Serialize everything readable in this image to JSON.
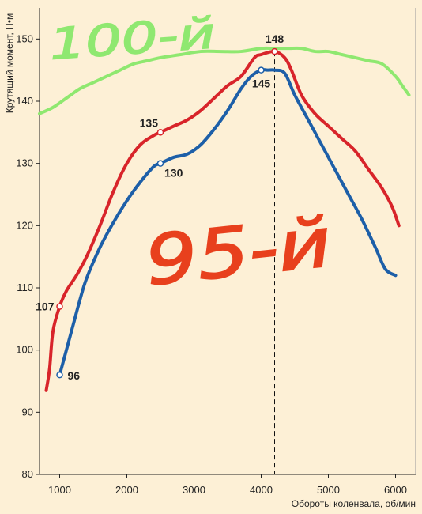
{
  "chart_data": {
    "type": "line",
    "xlabel": "Обороты коленвала, об/мин",
    "ylabel": "Крутящий момент, Н•м",
    "xlim": [
      700,
      6300
    ],
    "ylim": [
      80,
      155
    ],
    "xticks": [
      1000,
      2000,
      3000,
      4000,
      5000,
      6000
    ],
    "yticks": [
      80,
      90,
      100,
      110,
      120,
      130,
      140,
      150
    ],
    "grid": false,
    "colors": {
      "background": "#fdf0d6",
      "red": "#d8242a",
      "blue": "#1d5fa8",
      "green": "#8fe870",
      "handwriting": "#e8401d"
    },
    "series": [
      {
        "color": "#d8242a",
        "x": [
          800,
          850,
          900,
          1000,
          1100,
          1250,
          1400,
          1600,
          1800,
          2000,
          2200,
          2400,
          2500,
          2700,
          2900,
          3100,
          3300,
          3500,
          3700,
          3900,
          4000,
          4200,
          4350,
          4450,
          4600,
          4800,
          5000,
          5200,
          5400,
          5600,
          5800,
          5950,
          6050
        ],
        "values": [
          93.5,
          97,
          103,
          107,
          109.5,
          112,
          115,
          120,
          125.5,
          130,
          133,
          134.5,
          135,
          136,
          137,
          138.5,
          140.5,
          142.5,
          144,
          147,
          147.5,
          148,
          147,
          145,
          141,
          138,
          136,
          134,
          132,
          129,
          126,
          123,
          120
        ]
      },
      {
        "color": "#1d5fa8",
        "x": [
          1000,
          1100,
          1200,
          1300,
          1400,
          1600,
          1800,
          2000,
          2200,
          2400,
          2500,
          2700,
          2900,
          3100,
          3300,
          3500,
          3700,
          3850,
          4000,
          4100,
          4200,
          4350,
          4500,
          4700,
          4900,
          5100,
          5300,
          5500,
          5700,
          5850,
          6000
        ],
        "values": [
          96,
          100,
          104,
          108,
          111.5,
          116.5,
          120.5,
          124,
          127,
          129.5,
          130,
          131,
          131.5,
          133,
          135.5,
          138.5,
          142,
          144,
          145,
          145,
          145,
          144.5,
          141,
          137,
          133,
          129,
          125,
          121,
          116.5,
          113,
          112
        ]
      },
      {
        "color": "#8fe870",
        "x": [
          700,
          900,
          1100,
          1300,
          1500,
          1700,
          1900,
          2100,
          2300,
          2500,
          2800,
          3100,
          3400,
          3700,
          4000,
          4200,
          4400,
          4600,
          4800,
          5000,
          5200,
          5400,
          5600,
          5800,
          6000,
          6100,
          6200
        ],
        "values": [
          138,
          139,
          140.5,
          142,
          143,
          144,
          145,
          146,
          146.5,
          147,
          147.5,
          148,
          148,
          148,
          148.5,
          148.5,
          148.5,
          148.5,
          148,
          148,
          147.5,
          147,
          146.5,
          146,
          144,
          142.5,
          141
        ]
      }
    ],
    "points": [
      {
        "series": 0,
        "x": 1000,
        "y": 107,
        "label": "107"
      },
      {
        "series": 0,
        "x": 2500,
        "y": 135,
        "label": "135"
      },
      {
        "series": 0,
        "x": 4200,
        "y": 148,
        "label": "148"
      },
      {
        "series": 1,
        "x": 1000,
        "y": 96,
        "label": "96"
      },
      {
        "series": 1,
        "x": 2500,
        "y": 130,
        "label": "130"
      },
      {
        "series": 1,
        "x": 4000,
        "y": 145,
        "label": "145"
      }
    ],
    "marker_line_x": 4200,
    "annotations": [
      {
        "text": "100-й",
        "color": "#8fe870"
      },
      {
        "text": "95-й",
        "color": "#e8401d"
      }
    ]
  }
}
